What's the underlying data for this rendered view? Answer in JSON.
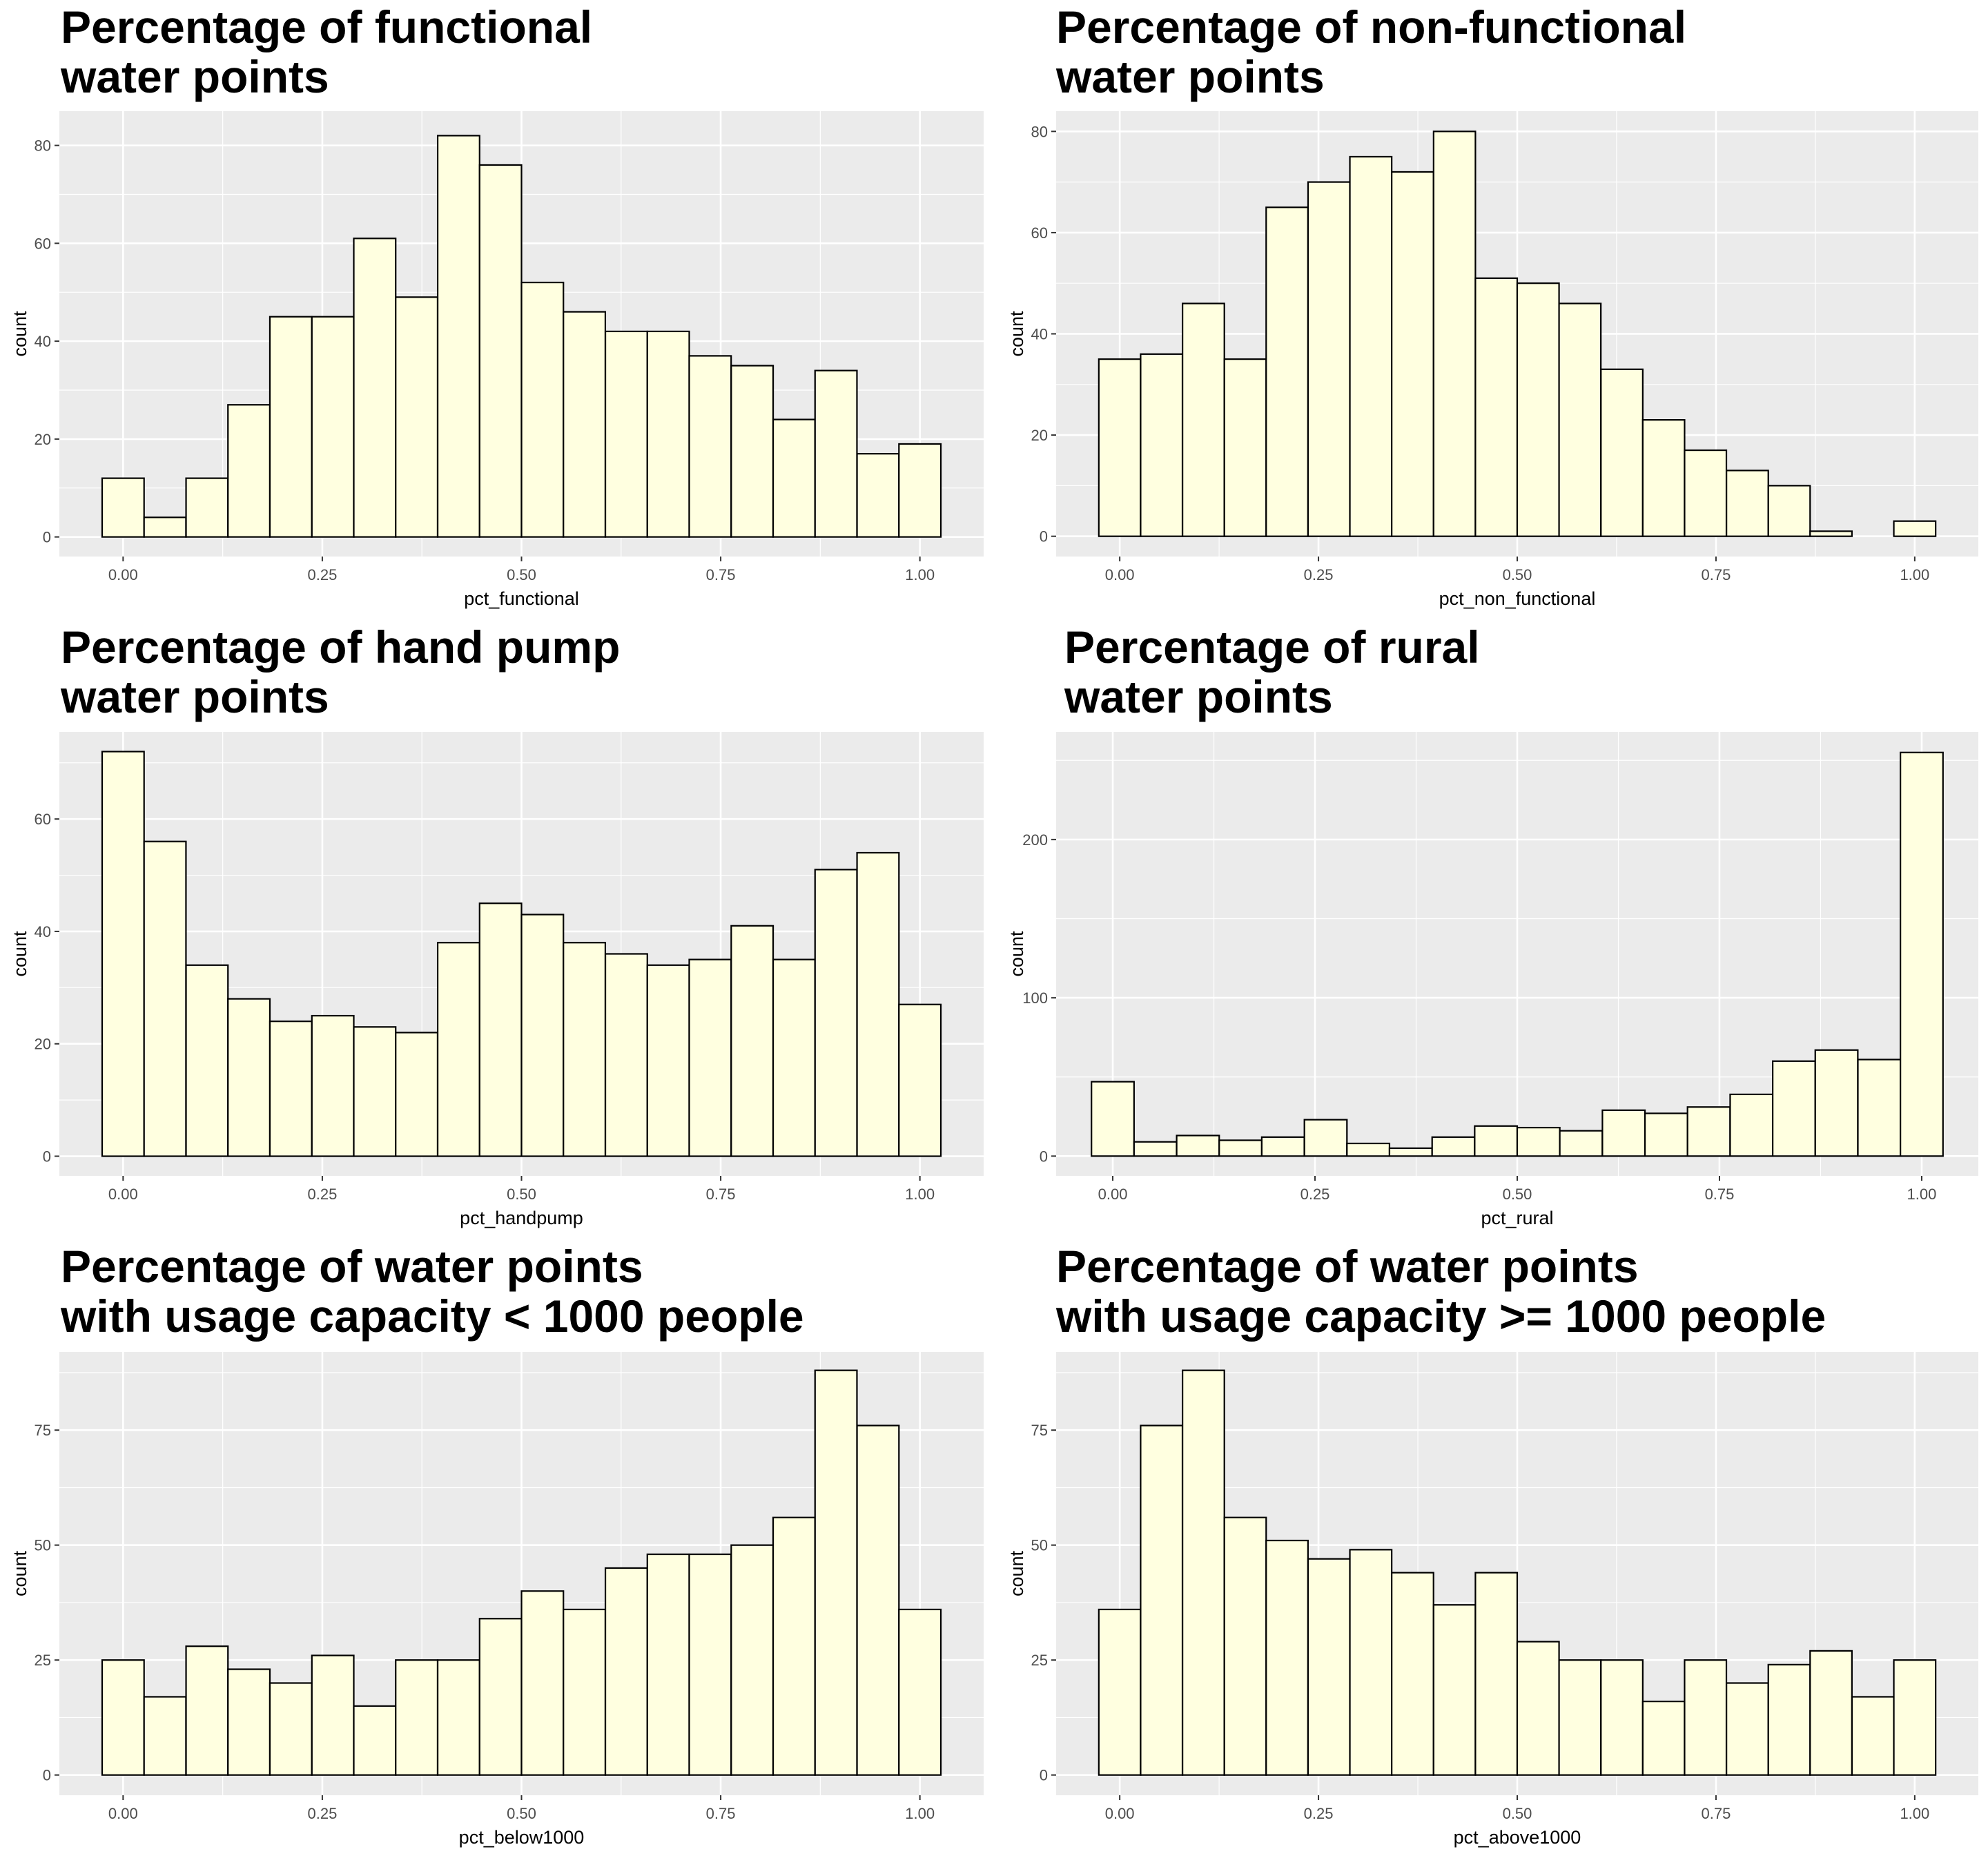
{
  "chart_data": [
    {
      "type": "bar",
      "title": [
        "Percentage of functional",
        "water points"
      ],
      "xlabel": "pct_functional",
      "ylabel": "count",
      "x": [
        0.0,
        0.0526,
        0.1053,
        0.1579,
        0.2105,
        0.2632,
        0.3158,
        0.3684,
        0.4211,
        0.4737,
        0.5263,
        0.5789,
        0.6316,
        0.6842,
        0.7368,
        0.7895,
        0.8421,
        0.8947,
        0.9474,
        1.0
      ],
      "values": [
        12,
        4,
        12,
        27,
        45,
        45,
        61,
        49,
        82,
        76,
        52,
        46,
        42,
        42,
        37,
        35,
        24,
        34,
        17,
        19
      ],
      "xlim": [
        -0.08,
        1.08
      ],
      "ylim": [
        -4,
        87
      ],
      "yticks": [
        0,
        20,
        40,
        60,
        80
      ],
      "xticks": [
        0.0,
        0.25,
        0.5,
        0.75,
        1.0
      ],
      "xtick_labels": [
        "0.00",
        "0.25",
        "0.50",
        "0.75",
        "1.00"
      ],
      "grid": true,
      "fill": "#FFFFE0",
      "edge": "#000000",
      "panel_bg": "#EBEBEB"
    },
    {
      "type": "bar",
      "title": [
        "Percentage of non-functional",
        "water points"
      ],
      "xlabel": "pct_non_functional",
      "ylabel": "count",
      "x": [
        0.0,
        0.0526,
        0.1053,
        0.1579,
        0.2105,
        0.2632,
        0.3158,
        0.3684,
        0.4211,
        0.4737,
        0.5263,
        0.5789,
        0.6316,
        0.6842,
        0.7368,
        0.7895,
        0.8421,
        0.8947,
        0.9474,
        1.0
      ],
      "values": [
        35,
        36,
        46,
        35,
        65,
        70,
        75,
        72,
        80,
        51,
        50,
        46,
        33,
        23,
        17,
        13,
        10,
        1,
        0,
        3
      ],
      "xlim": [
        -0.08,
        1.08
      ],
      "ylim": [
        -4,
        84
      ],
      "yticks": [
        0,
        20,
        40,
        60,
        80
      ],
      "xticks": [
        0.0,
        0.25,
        0.5,
        0.75,
        1.0
      ],
      "xtick_labels": [
        "0.00",
        "0.25",
        "0.50",
        "0.75",
        "1.00"
      ],
      "grid": true,
      "fill": "#FFFFE0",
      "edge": "#000000",
      "panel_bg": "#EBEBEB"
    },
    {
      "type": "bar",
      "title": [
        "Percentage of hand pump",
        "water points"
      ],
      "xlabel": "pct_handpump",
      "ylabel": "count",
      "x": [
        0.0,
        0.0526,
        0.1053,
        0.1579,
        0.2105,
        0.2632,
        0.3158,
        0.3684,
        0.4211,
        0.4737,
        0.5263,
        0.5789,
        0.6316,
        0.6842,
        0.7368,
        0.7895,
        0.8421,
        0.8947,
        0.9474,
        1.0
      ],
      "values": [
        72,
        56,
        34,
        28,
        24,
        25,
        23,
        22,
        38,
        45,
        43,
        38,
        36,
        34,
        35,
        41,
        35,
        51,
        54,
        27
      ],
      "xlim": [
        -0.08,
        1.08
      ],
      "ylim": [
        -3.5,
        75.5
      ],
      "yticks": [
        0,
        20,
        40,
        60
      ],
      "xticks": [
        0.0,
        0.25,
        0.5,
        0.75,
        1.0
      ],
      "xtick_labels": [
        "0.00",
        "0.25",
        "0.50",
        "0.75",
        "1.00"
      ],
      "grid": true,
      "fill": "#FFFFE0",
      "edge": "#000000",
      "panel_bg": "#EBEBEB"
    },
    {
      "type": "bar",
      "title": [
        "Percentage of rural",
        "water points"
      ],
      "xlabel": "pct_rural",
      "ylabel": "count",
      "x": [
        0.0,
        0.0526,
        0.1053,
        0.1579,
        0.2105,
        0.2632,
        0.3158,
        0.3684,
        0.4211,
        0.4737,
        0.5263,
        0.5789,
        0.6316,
        0.6842,
        0.7368,
        0.7895,
        0.8421,
        0.8947,
        0.9474,
        1.0
      ],
      "values": [
        47,
        9,
        13,
        10,
        12,
        23,
        8,
        5,
        12,
        19,
        18,
        16,
        29,
        27,
        31,
        39,
        60,
        67,
        61,
        255
      ],
      "xlim": [
        -0.07,
        1.07
      ],
      "ylim": [
        -12.5,
        268
      ],
      "yticks": [
        0,
        100,
        200
      ],
      "xticks": [
        0.0,
        0.25,
        0.5,
        0.75,
        1.0
      ],
      "xtick_labels": [
        "0.00",
        "0.25",
        "0.50",
        "0.75",
        "1.00"
      ],
      "grid": true,
      "fill": "#FFFFE0",
      "edge": "#000000",
      "panel_bg": "#EBEBEB"
    },
    {
      "type": "bar",
      "title": [
        "Percentage of water points",
        "with usage capacity < 1000 people"
      ],
      "xlabel": "pct_below1000",
      "ylabel": "count",
      "x": [
        0.0,
        0.0526,
        0.1053,
        0.1579,
        0.2105,
        0.2632,
        0.3158,
        0.3684,
        0.4211,
        0.4737,
        0.5263,
        0.5789,
        0.6316,
        0.6842,
        0.7368,
        0.7895,
        0.8421,
        0.8947,
        0.9474,
        1.0
      ],
      "values": [
        25,
        17,
        28,
        23,
        20,
        26,
        15,
        25,
        25,
        34,
        40,
        36,
        45,
        48,
        48,
        50,
        56,
        88,
        76,
        36
      ],
      "xlim": [
        -0.08,
        1.08
      ],
      "ylim": [
        -4.4,
        92
      ],
      "yticks": [
        0,
        25,
        50,
        75
      ],
      "xticks": [
        0.0,
        0.25,
        0.5,
        0.75,
        1.0
      ],
      "xtick_labels": [
        "0.00",
        "0.25",
        "0.50",
        "0.75",
        "1.00"
      ],
      "grid": true,
      "fill": "#FFFFE0",
      "edge": "#000000",
      "panel_bg": "#EBEBEB"
    },
    {
      "type": "bar",
      "title": [
        "Percentage of water points",
        "with usage capacity >= 1000 people"
      ],
      "xlabel": "pct_above1000",
      "ylabel": "count",
      "x": [
        0.0,
        0.0526,
        0.1053,
        0.1579,
        0.2105,
        0.2632,
        0.3158,
        0.3684,
        0.4211,
        0.4737,
        0.5263,
        0.5789,
        0.6316,
        0.6842,
        0.7368,
        0.7895,
        0.8421,
        0.8947,
        0.9474,
        1.0
      ],
      "values": [
        36,
        76,
        88,
        56,
        51,
        47,
        49,
        44,
        37,
        44,
        29,
        25,
        25,
        16,
        25,
        20,
        24,
        27,
        17,
        25
      ],
      "xlim": [
        -0.08,
        1.08
      ],
      "ylim": [
        -4.4,
        92
      ],
      "yticks": [
        0,
        25,
        50,
        75
      ],
      "xticks": [
        0.0,
        0.25,
        0.5,
        0.75,
        1.0
      ],
      "xtick_labels": [
        "0.00",
        "0.25",
        "0.50",
        "0.75",
        "1.00"
      ],
      "grid": true,
      "fill": "#FFFFE0",
      "edge": "#000000",
      "panel_bg": "#EBEBEB"
    }
  ]
}
